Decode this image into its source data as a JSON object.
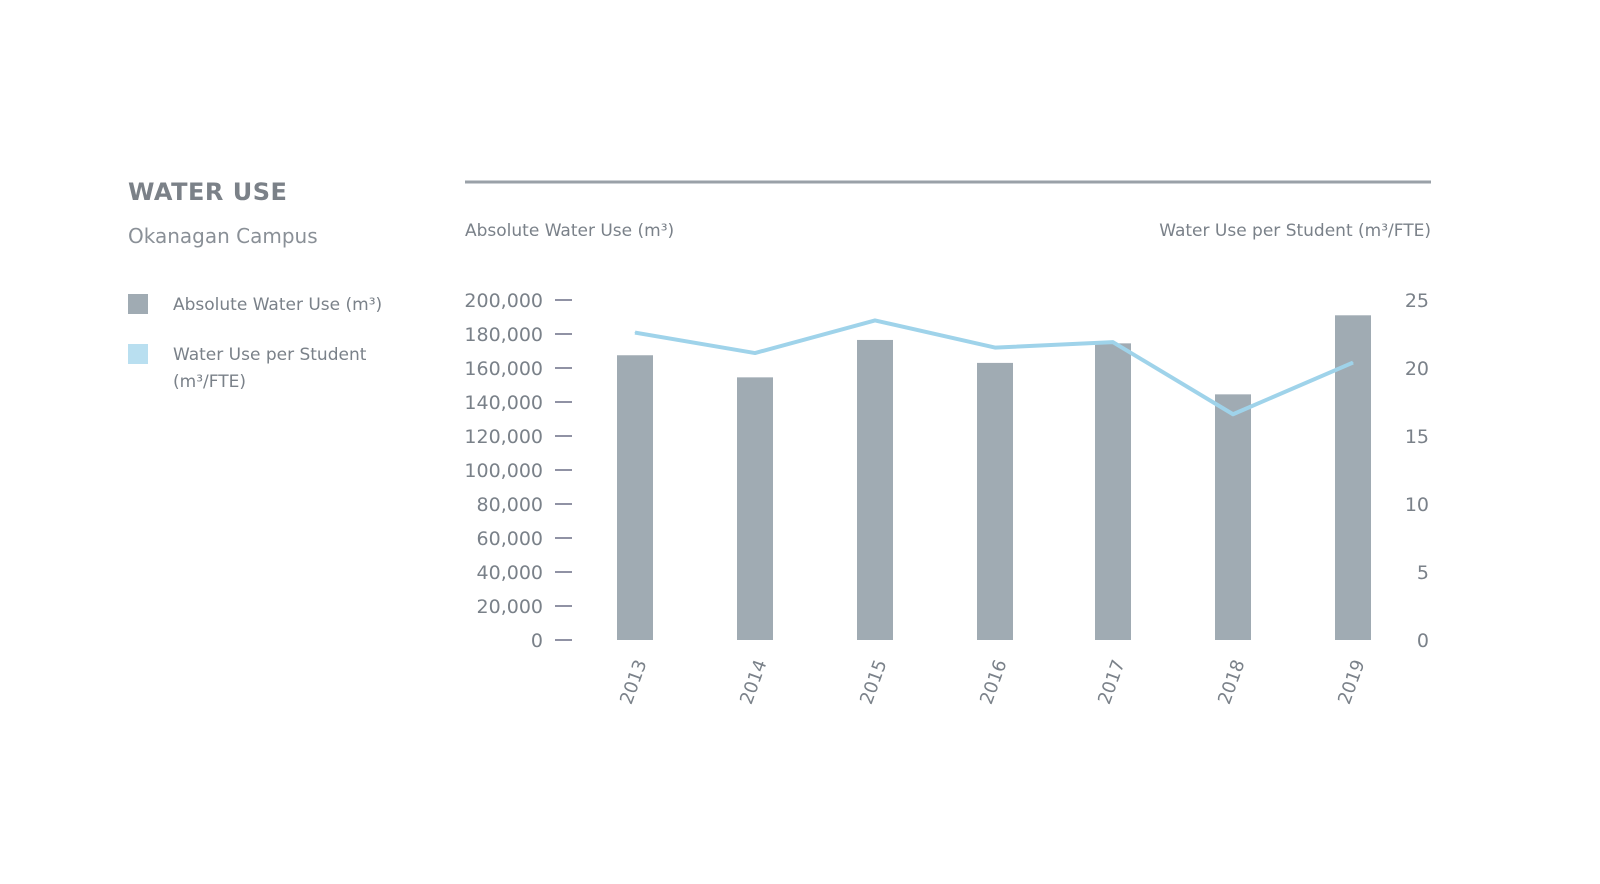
{
  "header": {
    "title": "WATER USE",
    "subtitle": "Okanagan Campus"
  },
  "legend": [
    {
      "label": "Absolute Water Use (m³)",
      "color": "#a0abb3"
    },
    {
      "label": "Water Use per Student",
      "label2": "(m³/FTE)",
      "color": "#b9dff0"
    }
  ],
  "chart_data": {
    "type": "bar+line",
    "title": "WATER USE",
    "subtitle": "Okanagan Campus",
    "categories": [
      "2013",
      "2014",
      "2015",
      "2016",
      "2017",
      "2018",
      "2019"
    ],
    "ylabel_left": "Absolute Water Use (m³)",
    "ylabel_right": "Water Use per Student (m³/FTE)",
    "ylim_left": [
      0,
      200000
    ],
    "ylim_right": [
      0,
      25
    ],
    "yticks_left": [
      "0",
      "20,000",
      "40,000",
      "60,000",
      "80,000",
      "100,000",
      "120,000",
      "140,000",
      "160,000",
      "180,000",
      "200,000"
    ],
    "yticks_right": [
      "0",
      "5",
      "10",
      "15",
      "20",
      "25"
    ],
    "grid": false,
    "legend_placement": "left",
    "series": [
      {
        "name": "Absolute Water Use (m³)",
        "type": "bar",
        "axis": "left",
        "color": "#a0abb3",
        "values": [
          167500,
          154500,
          176500,
          163000,
          174500,
          144500,
          191000
        ]
      },
      {
        "name": "Water Use per Student (m³/FTE)",
        "type": "line",
        "axis": "right",
        "color": "#9fd3ea",
        "values": [
          22.6,
          21.1,
          23.5,
          21.5,
          21.9,
          16.6,
          20.4
        ]
      }
    ]
  }
}
